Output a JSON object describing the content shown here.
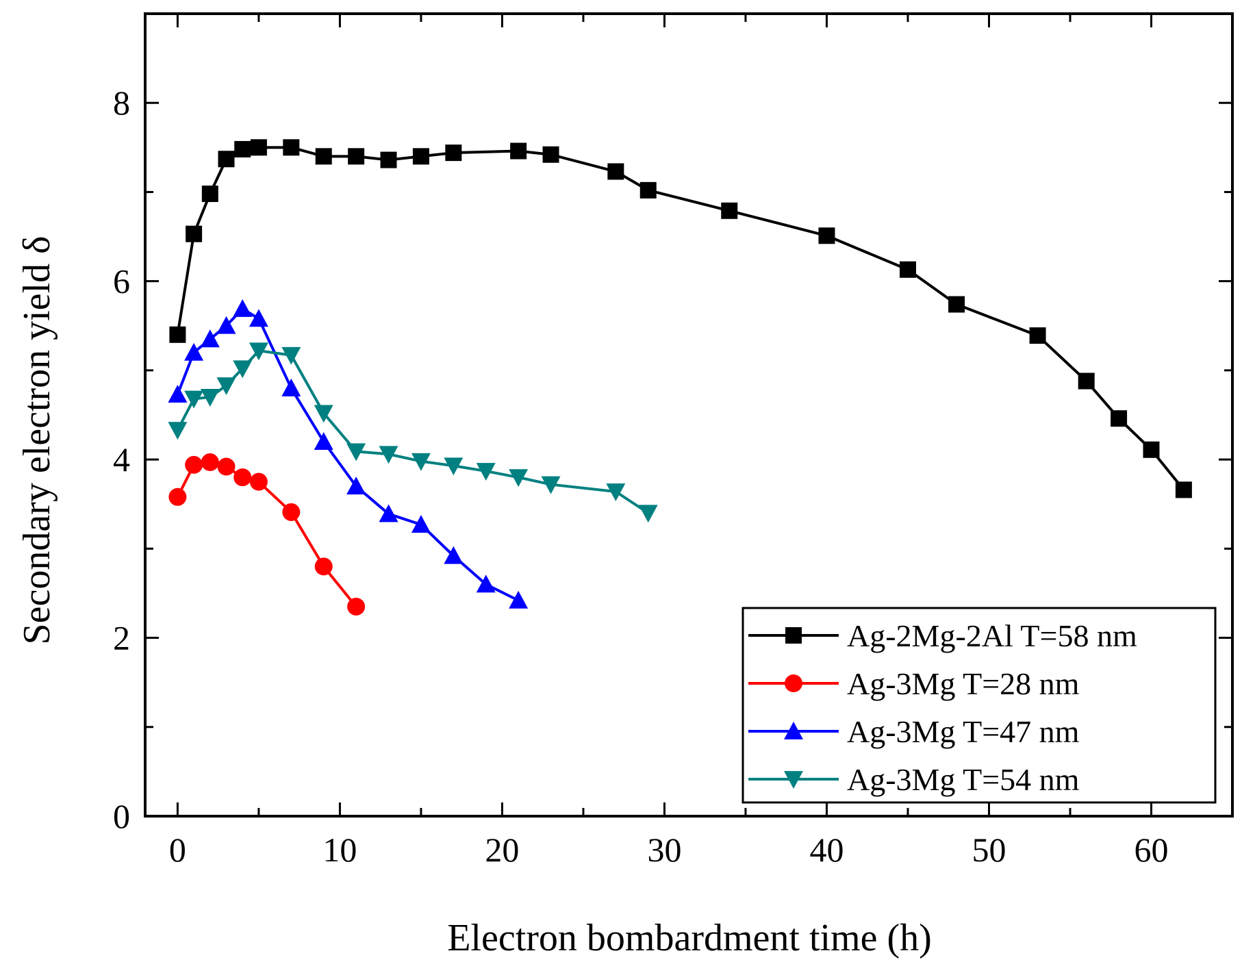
{
  "chart_data": {
    "type": "line",
    "title": "",
    "xlabel": "Electron bombardment time (h)",
    "ylabel": "Secondary electron yield δ",
    "xlim": [
      -2,
      65
    ],
    "ylim": [
      0,
      9
    ],
    "x_ticks": [
      0,
      10,
      20,
      30,
      40,
      50,
      60
    ],
    "y_ticks": [
      0,
      2,
      4,
      6,
      8
    ],
    "legend_position": "bottom-right",
    "series": [
      {
        "name": "Ag-2Mg-2Al T=58 nm",
        "color": "#000000",
        "marker": "square",
        "x": [
          0,
          1,
          2,
          3,
          4,
          5,
          7,
          9,
          11,
          13,
          15,
          17,
          21,
          23,
          27,
          29,
          34,
          40,
          45,
          48,
          53,
          56,
          58,
          60,
          62
        ],
        "y": [
          5.4,
          6.53,
          6.98,
          7.37,
          7.48,
          7.5,
          7.5,
          7.4,
          7.4,
          7.36,
          7.4,
          7.44,
          7.46,
          7.42,
          7.23,
          7.02,
          6.79,
          6.51,
          6.13,
          5.74,
          5.39,
          4.88,
          4.46,
          4.11,
          3.66
        ]
      },
      {
        "name": "Ag-3Mg T=28 nm",
        "color": "#ff0000",
        "marker": "circle",
        "x": [
          0,
          1,
          2,
          3,
          4,
          5,
          7,
          9,
          11
        ],
        "y": [
          3.58,
          3.94,
          3.97,
          3.92,
          3.8,
          3.75,
          3.41,
          2.8,
          2.35
        ]
      },
      {
        "name": "Ag-3Mg T=47 nm",
        "color": "#0000ff",
        "marker": "triangle-up",
        "x": [
          0,
          1,
          2,
          3,
          4,
          5,
          7,
          9,
          11,
          13,
          15,
          17,
          19,
          21
        ],
        "y": [
          4.73,
          5.2,
          5.35,
          5.5,
          5.69,
          5.58,
          4.8,
          4.2,
          3.7,
          3.39,
          3.27,
          2.92,
          2.6,
          2.42
        ]
      },
      {
        "name": "Ag-3Mg T=54 nm",
        "color": "#008080",
        "marker": "triangle-down",
        "x": [
          0,
          1,
          2,
          3,
          4,
          5,
          7,
          9,
          11,
          13,
          15,
          17,
          19,
          21,
          23,
          27,
          29
        ],
        "y": [
          4.33,
          4.68,
          4.7,
          4.83,
          5.02,
          5.22,
          5.17,
          4.52,
          4.09,
          4.06,
          3.98,
          3.93,
          3.87,
          3.8,
          3.72,
          3.64,
          3.4
        ]
      }
    ]
  }
}
